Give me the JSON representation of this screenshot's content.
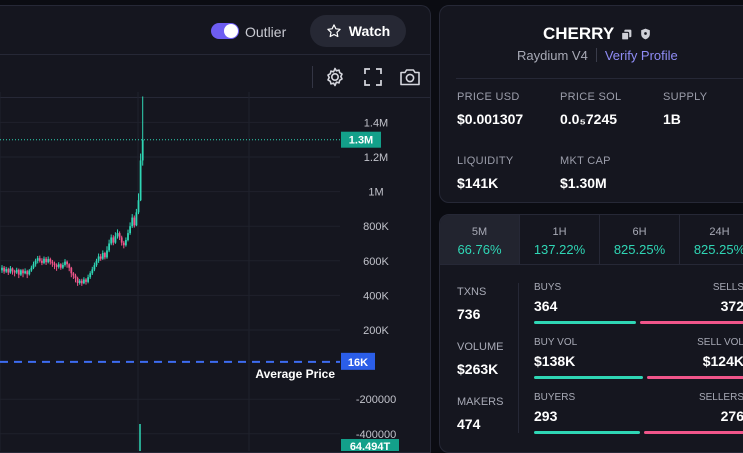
{
  "topbar": {
    "outlier_label": "Outlier",
    "outlier_enabled": true,
    "watch_label": "Watch"
  },
  "chart_data": {
    "type": "candlestick",
    "y_ticks": [
      "1.4M",
      "1.2M",
      "1M",
      "800K",
      "600K",
      "400K",
      "200K",
      "-200000",
      "-400000"
    ],
    "y_tick_values": [
      1400000,
      1200000,
      1000000,
      800000,
      600000,
      400000,
      200000,
      -200000,
      -400000
    ],
    "current_value_label": "1.3M",
    "current_value": 1300000,
    "average_price_label": "Average Price",
    "average_price_tag": "16K",
    "average_price_value": 16000,
    "volume_tag": "64.494T",
    "candles": [
      [
        545000,
        560000,
        530000,
        575000
      ],
      [
        560000,
        538000,
        525000,
        570000
      ],
      [
        538000,
        552000,
        530000,
        565000
      ],
      [
        552000,
        532000,
        518000,
        560000
      ],
      [
        532000,
        556000,
        525000,
        570000
      ],
      [
        556000,
        540000,
        520000,
        562000
      ],
      [
        540000,
        532000,
        510000,
        548000
      ],
      [
        532000,
        548000,
        524000,
        560000
      ],
      [
        548000,
        520000,
        500000,
        555000
      ],
      [
        520000,
        545000,
        512000,
        552000
      ],
      [
        545000,
        528000,
        505000,
        553000
      ],
      [
        528000,
        540000,
        522000,
        556000
      ],
      [
        540000,
        522000,
        500000,
        548000
      ],
      [
        522000,
        544000,
        515000,
        552000
      ],
      [
        544000,
        560000,
        536000,
        572000
      ],
      [
        560000,
        580000,
        552000,
        595000
      ],
      [
        580000,
        600000,
        566000,
        612000
      ],
      [
        600000,
        615000,
        585000,
        628000
      ],
      [
        615000,
        600000,
        590000,
        630000
      ],
      [
        600000,
        588000,
        575000,
        615000
      ],
      [
        588000,
        612000,
        580000,
        625000
      ],
      [
        612000,
        592000,
        576000,
        622000
      ],
      [
        592000,
        610000,
        585000,
        625000
      ],
      [
        610000,
        595000,
        578000,
        618000
      ],
      [
        595000,
        585000,
        565000,
        605000
      ],
      [
        585000,
        575000,
        552000,
        595000
      ],
      [
        575000,
        565000,
        542000,
        585000
      ],
      [
        565000,
        580000,
        555000,
        592000
      ],
      [
        580000,
        560000,
        548000,
        586000
      ],
      [
        560000,
        576000,
        552000,
        590000
      ],
      [
        576000,
        595000,
        566000,
        610000
      ],
      [
        595000,
        580000,
        560000,
        602000
      ],
      [
        580000,
        560000,
        540000,
        586000
      ],
      [
        560000,
        528000,
        505000,
        565000
      ],
      [
        528000,
        515000,
        495000,
        535000
      ],
      [
        515000,
        500000,
        475000,
        525000
      ],
      [
        500000,
        472000,
        455000,
        508000
      ],
      [
        472000,
        485000,
        462000,
        495000
      ],
      [
        485000,
        470000,
        455000,
        496000
      ],
      [
        470000,
        492000,
        465000,
        505000
      ],
      [
        492000,
        478000,
        462000,
        500000
      ],
      [
        478000,
        505000,
        470000,
        520000
      ],
      [
        505000,
        528000,
        495000,
        540000
      ],
      [
        528000,
        550000,
        518000,
        565000
      ],
      [
        550000,
        575000,
        540000,
        590000
      ],
      [
        575000,
        600000,
        565000,
        612000
      ],
      [
        600000,
        625000,
        588000,
        642000
      ],
      [
        625000,
        612000,
        600000,
        640000
      ],
      [
        612000,
        645000,
        605000,
        660000
      ],
      [
        645000,
        620000,
        608000,
        652000
      ],
      [
        620000,
        660000,
        612000,
        684000
      ],
      [
        660000,
        700000,
        650000,
        722000
      ],
      [
        700000,
        735000,
        690000,
        752000
      ],
      [
        735000,
        705000,
        690000,
        748000
      ],
      [
        705000,
        742000,
        698000,
        765000
      ],
      [
        742000,
        760000,
        728000,
        782000
      ],
      [
        760000,
        735000,
        720000,
        770000
      ],
      [
        735000,
        705000,
        688000,
        745000
      ],
      [
        705000,
        690000,
        672000,
        715000
      ],
      [
        690000,
        720000,
        682000,
        735000
      ],
      [
        720000,
        760000,
        712000,
        780000
      ],
      [
        760000,
        800000,
        750000,
        822000
      ],
      [
        800000,
        850000,
        790000,
        870000
      ],
      [
        850000,
        805000,
        792000,
        862000
      ],
      [
        805000,
        880000,
        800000,
        900000
      ],
      [
        880000,
        950000,
        870000,
        990000
      ],
      [
        950000,
        1180000,
        945000,
        1220000
      ],
      [
        1180000,
        1300000,
        1150000,
        1550000
      ]
    ]
  },
  "token": {
    "name": "CHERRY",
    "dex": "Raydium V4",
    "verify_label": "Verify Profile",
    "stats": [
      {
        "label": "PRICE USD",
        "value": "$0.001307"
      },
      {
        "label": "PRICE SOL",
        "value": "0.0₅7245"
      },
      {
        "label": "SUPPLY",
        "value": "1B"
      },
      {
        "label": "LIQUIDITY",
        "value": "$141K"
      },
      {
        "label": "MKT CAP",
        "value": "$1.30M"
      }
    ]
  },
  "timeframes": [
    {
      "label": "5M",
      "change": "66.76%"
    },
    {
      "label": "1H",
      "change": "137.22%"
    },
    {
      "label": "6H",
      "change": "825.25%"
    },
    {
      "label": "24H",
      "change": "825.25%"
    }
  ],
  "txns": {
    "txns_label": "TXNS",
    "txns_value": "736",
    "volume_label": "VOLUME",
    "volume_value": "$263K",
    "makers_label": "MAKERS",
    "makers_value": "474",
    "buys_label": "BUYS",
    "buys_value": "364",
    "sells_label": "SELLS",
    "sells_value": "372",
    "buy_vol_label": "BUY VOL",
    "buy_vol_value": "$138K",
    "sell_vol_label": "SELL VOL",
    "sell_vol_value": "$124K",
    "buyers_label": "BUYERS",
    "buyers_value": "293",
    "sellers_label": "SELLERS",
    "sellers_value": "276",
    "buys_ratio": 0.494,
    "buy_vol_ratio": 0.527,
    "buyers_ratio": 0.515
  },
  "colors": {
    "up": "#2fd6b5",
    "down": "#f0558a",
    "accent": "#6e5df2",
    "avg_line": "#3d6cf0"
  }
}
